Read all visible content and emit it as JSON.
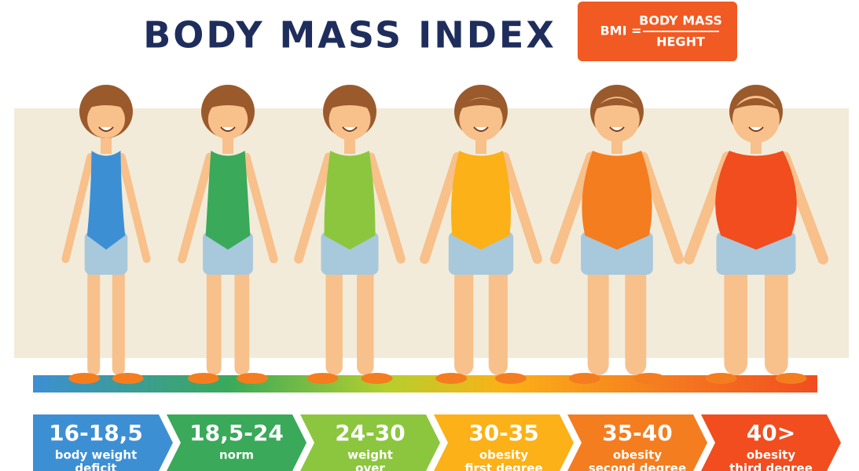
{
  "header": {
    "title": "BODY MASS INDEX",
    "formula": {
      "lhs": "BMI =",
      "numerator": "BODY MASS",
      "denominator": "HEGHT"
    }
  },
  "categories": [
    {
      "range": "16-18,5",
      "lines": [
        "body weight",
        "deficit"
      ],
      "color": "#3d8fd4"
    },
    {
      "range": "18,5-24",
      "lines": [
        "norm"
      ],
      "color": "#3aa95a"
    },
    {
      "range": "24-30",
      "lines": [
        "weight",
        "over"
      ],
      "color": "#8cc63f"
    },
    {
      "range": "30-35",
      "lines": [
        "obesity",
        "first degree"
      ],
      "color": "#fbb117"
    },
    {
      "range": "35-40",
      "lines": [
        "obesity",
        "second degree"
      ],
      "color": "#f47d20"
    },
    {
      "range": "40>",
      "lines": [
        "obesity",
        "third degree"
      ],
      "color": "#f14d1f"
    }
  ]
}
